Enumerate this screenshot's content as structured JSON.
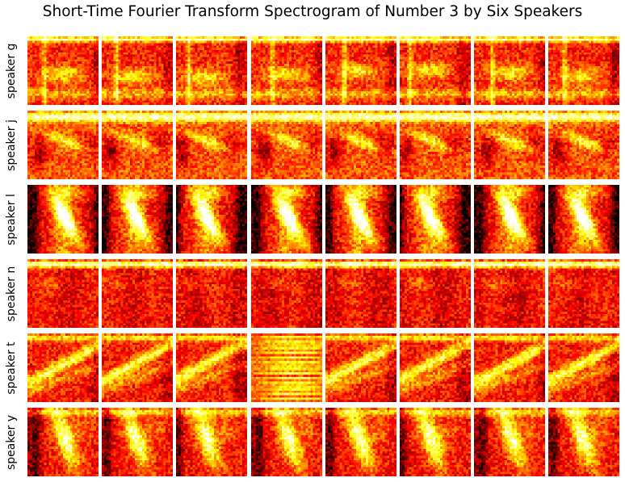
{
  "title": "Short-Time Fourier Transform Spectrogram of Number 3 by Six Speakers",
  "colors": {
    "background": "#ffffff",
    "colormap": "hot",
    "text": "#000000"
  },
  "chart_data": {
    "type": "heatmap",
    "title": "Short-Time Fourier Transform Spectrogram of Number 3 by Six Speakers",
    "colormap": "hot",
    "axes": "off",
    "rows": [
      "speaker g",
      "speaker j",
      "speaker l",
      "speaker n",
      "speaker t",
      "speaker y"
    ],
    "samples_per_row": 8
  }
}
